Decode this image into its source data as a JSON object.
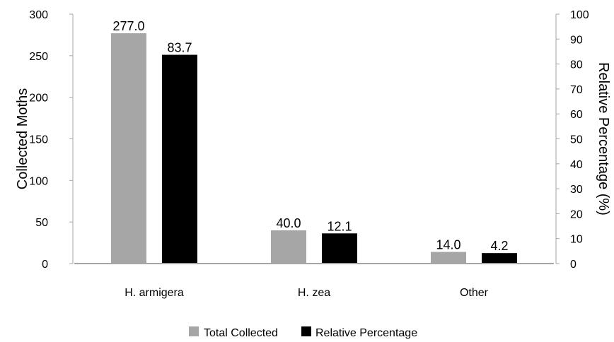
{
  "chart_data": {
    "type": "bar",
    "categories": [
      "H. armigera",
      "H. zea",
      "Other"
    ],
    "series": [
      {
        "name": "Total Collected",
        "axis": "left",
        "color": "#a6a6a6",
        "values": [
          277.0,
          40.0,
          14.0
        ],
        "labels": [
          "277.0",
          "40.0",
          "14.0"
        ]
      },
      {
        "name": "Relative Percentage",
        "axis": "right",
        "color": "#000000",
        "values": [
          83.7,
          12.1,
          4.2
        ],
        "labels": [
          "83.7",
          "12.1",
          "4.2"
        ]
      }
    ],
    "ylabel": "Collected Moths",
    "y2label": "Relative Percentage (%)",
    "ylim": [
      0,
      300
    ],
    "y2lim": [
      0,
      100
    ],
    "yticks": [
      "0",
      "50",
      "100",
      "150",
      "200",
      "250",
      "300"
    ],
    "y2ticks": [
      "0",
      "10",
      "20",
      "30",
      "40",
      "50",
      "60",
      "70",
      "80",
      "90",
      "100"
    ],
    "grid": false,
    "legend_position": "bottom"
  }
}
